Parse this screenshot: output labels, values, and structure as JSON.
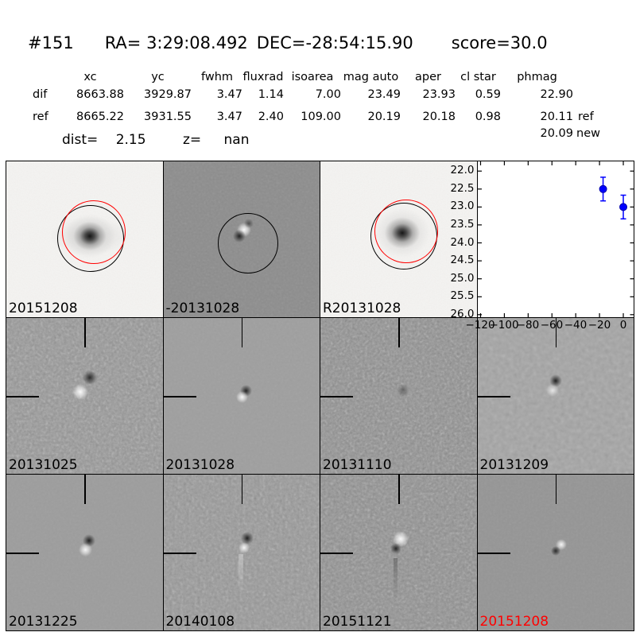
{
  "figure": {
    "title_id": "#151",
    "title_ra": "RA= 3:29:08.492",
    "title_dec": "DEC=-28:54:15.90",
    "title_score": "score=30.0"
  },
  "table": {
    "columns": [
      "xc",
      "yc",
      "fwhm",
      "fluxrad",
      "isoarea",
      "mag auto",
      "aper",
      "cl star",
      "phmag"
    ],
    "dif": {
      "name": "dif",
      "xc": "8663.88",
      "yc": "3929.87",
      "fwhm": "3.47",
      "fluxrad": "1.14",
      "isoarea": "7.00",
      "mag_auto": "23.49",
      "aper": "23.93",
      "cl_star": "0.59",
      "phmag": "22.90",
      "suffix": ""
    },
    "ref": {
      "name": "ref",
      "xc": "8665.22",
      "yc": "3931.55",
      "fwhm": "3.47",
      "fluxrad": "2.40",
      "isoarea": "109.00",
      "mag_auto": "20.19",
      "aper": "20.18",
      "cl_star": "0.98",
      "phmag": "20.11",
      "suffix": "ref"
    },
    "extra_phmag": "20.09",
    "extra_suffix": "new",
    "dist_label": "dist=",
    "dist_value": "2.15",
    "z_label": "z=",
    "z_value": "nan"
  },
  "cutouts": {
    "row1": [
      {
        "label": "20151208",
        "label_color": "#000000"
      },
      {
        "label": "-20131028",
        "label_color": "#000000"
      },
      {
        "label": "R20131028",
        "label_color": "#000000"
      }
    ],
    "row2": [
      {
        "label": "20131025",
        "label_color": "#000000"
      },
      {
        "label": "20131028",
        "label_color": "#000000"
      },
      {
        "label": "20131110",
        "label_color": "#000000"
      },
      {
        "label": "20131209",
        "label_color": "#000000"
      }
    ],
    "row3": [
      {
        "label": "20131225",
        "label_color": "#000000"
      },
      {
        "label": "20140108",
        "label_color": "#000000"
      },
      {
        "label": "20151121",
        "label_color": "#000000"
      },
      {
        "label": "20151208",
        "label_color": "#ff0000"
      }
    ]
  },
  "chart_data": {
    "type": "scatter",
    "title": "",
    "xlabel": "",
    "ylabel": "",
    "x": [
      -17,
      0
    ],
    "y": [
      22.5,
      23.0
    ],
    "yerr": [
      0.33,
      0.33
    ],
    "xlim": [
      -122.3,
      9.0
    ],
    "ylim": [
      21.73,
      26.07
    ],
    "y_axis_inverted": true,
    "xticks": [
      -120,
      -100,
      -80,
      -60,
      -40,
      -20,
      0
    ],
    "yticks": [
      22.0,
      22.5,
      23.0,
      23.5,
      24.0,
      24.5,
      25.0,
      25.5,
      26.0
    ],
    "grid": false,
    "legend_position": "none",
    "marker": "o",
    "marker_color": "#0000ff",
    "marker_edge_color": "#0000aa"
  },
  "colors": {
    "highlight_red": "#ff0000",
    "point_blue": "#0000ff"
  }
}
